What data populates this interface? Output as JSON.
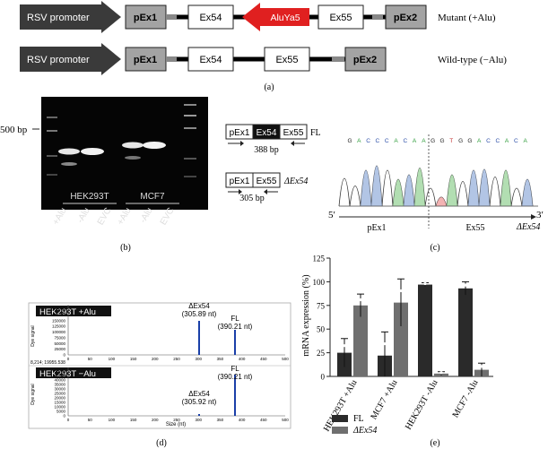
{
  "panel_a": {
    "mutant": {
      "promoter": "RSV promoter",
      "pex1": "pEx1",
      "ex54": "Ex54",
      "alu": "AluYa5",
      "ex55": "Ex55",
      "pex2": "pEx2",
      "label": "Mutant (+Alu)"
    },
    "wildtype": {
      "promoter": "RSV promoter",
      "pex1": "pEx1",
      "ex54": "Ex54",
      "ex55": "Ex55",
      "pex2": "pEx2",
      "label": "Wild-type (−Alu)"
    },
    "caption": "(a)"
  },
  "panel_b": {
    "marker": "500 bp",
    "cell1": "HEK293T",
    "cell2": "MCF7",
    "lanes": [
      "+Alu",
      "-Alu",
      "EVC",
      "+Alu",
      "-Alu",
      "EVC"
    ],
    "caption": "(b)",
    "fl_label": "FL",
    "fl_size": "388 bp",
    "del_label": "ΔEx54",
    "del_size": "305 bp",
    "boxes": {
      "pex1": "pEx1",
      "ex54": "Ex54",
      "ex55": "Ex55"
    }
  },
  "panel_c": {
    "sequence": "GACCCACAAGGTGGACCACA",
    "left": "pEx1",
    "right": "Ex55",
    "end5": "5′",
    "end3": "3′",
    "del": "ΔEx54",
    "caption": "(c)"
  },
  "panel_d": {
    "caption": "(d)",
    "top": {
      "title": "HEK293T +Alu",
      "ylabel": "Dye signal",
      "peak1": "ΔEx54",
      "peak1_size": "(305.89 nt)",
      "peak2": "FL",
      "peak2_size": "(390.21 nt)",
      "yticks": [
        "200000",
        "175000",
        "150000",
        "125000",
        "100000",
        "75000",
        "50000",
        "25000",
        "0"
      ],
      "xticks": [
        "0",
        "50",
        "100",
        "150",
        "200",
        "250",
        "300",
        "350",
        "400",
        "450",
        "500"
      ]
    },
    "between": "8,214; 19955.538",
    "bottom": {
      "title": "HEK293T −Alu",
      "ylabel": "Dye signal",
      "peak1": "ΔEx54",
      "peak1_size": "(305.92 nt)",
      "peak2": "FL",
      "peak2_size": "(390.21 nt)",
      "yticks": [
        "50000",
        "45000",
        "40000",
        "35000",
        "30000",
        "25000",
        "20000",
        "15000",
        "10000",
        "5000",
        "0"
      ],
      "xticks": [
        "0",
        "50",
        "100",
        "150",
        "200",
        "250",
        "300",
        "350",
        "400",
        "450",
        "500"
      ],
      "xlabel": "Size (nt)"
    }
  },
  "chart_data": {
    "type": "bar",
    "ylabel": "mRNA expression (%)",
    "ylim": [
      0,
      125
    ],
    "yticks": [
      0,
      25,
      50,
      75,
      100,
      125
    ],
    "categories": [
      "HEK293T +Alu",
      "MCF7 +Alu",
      "HEK293T -Alu",
      "MCF7 -Alu"
    ],
    "series": [
      {
        "name": "FL",
        "values": [
          25,
          22,
          97,
          93
        ],
        "errors": [
          15,
          25,
          2,
          7
        ],
        "color": "#2a2a2a"
      },
      {
        "name": "ΔEx54",
        "values": [
          75,
          78,
          3,
          7
        ],
        "errors": [
          12,
          25,
          2,
          7
        ],
        "color": "#6f6f6f"
      }
    ],
    "legend_position": "bottom-left",
    "caption": "(e)"
  }
}
